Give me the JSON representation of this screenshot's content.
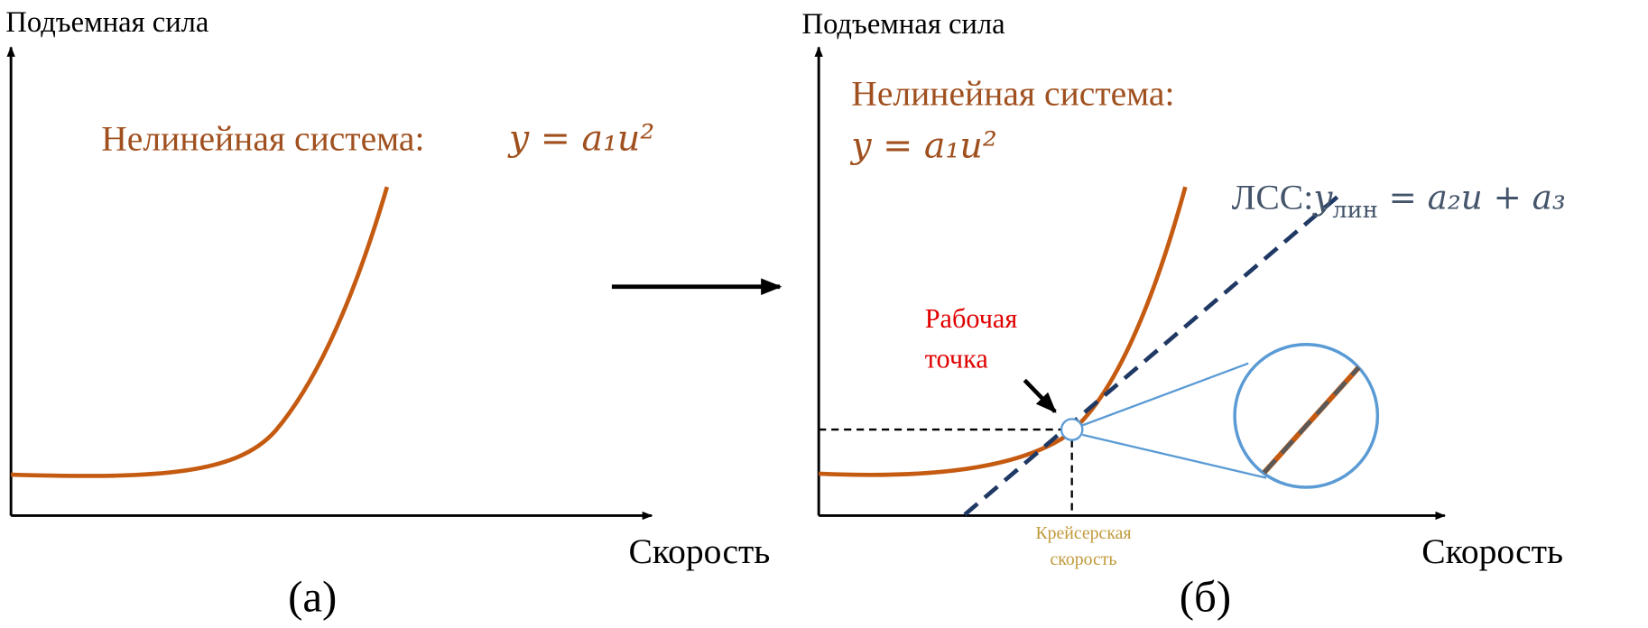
{
  "panel_a": {
    "y_label": "Подъемная сила",
    "x_label": "Скорость",
    "system_label": "Нелинейная система:",
    "formula": "y = a₁u²",
    "caption": "(а)"
  },
  "panel_b": {
    "y_label": "Подъемная сила",
    "x_label": "Скорость",
    "system_label": "Нелинейная система:",
    "formula": "y = a₁u²",
    "linear_label": "ЛСС:",
    "linear_formula": {
      "y": "y",
      "subscript": "лин",
      "rest": " = a₂u + a₃"
    },
    "operating_point": [
      "Рабочая",
      "точка"
    ],
    "cruise_speed": [
      "Крейсерская",
      "скорость"
    ],
    "caption": "(б)"
  }
}
